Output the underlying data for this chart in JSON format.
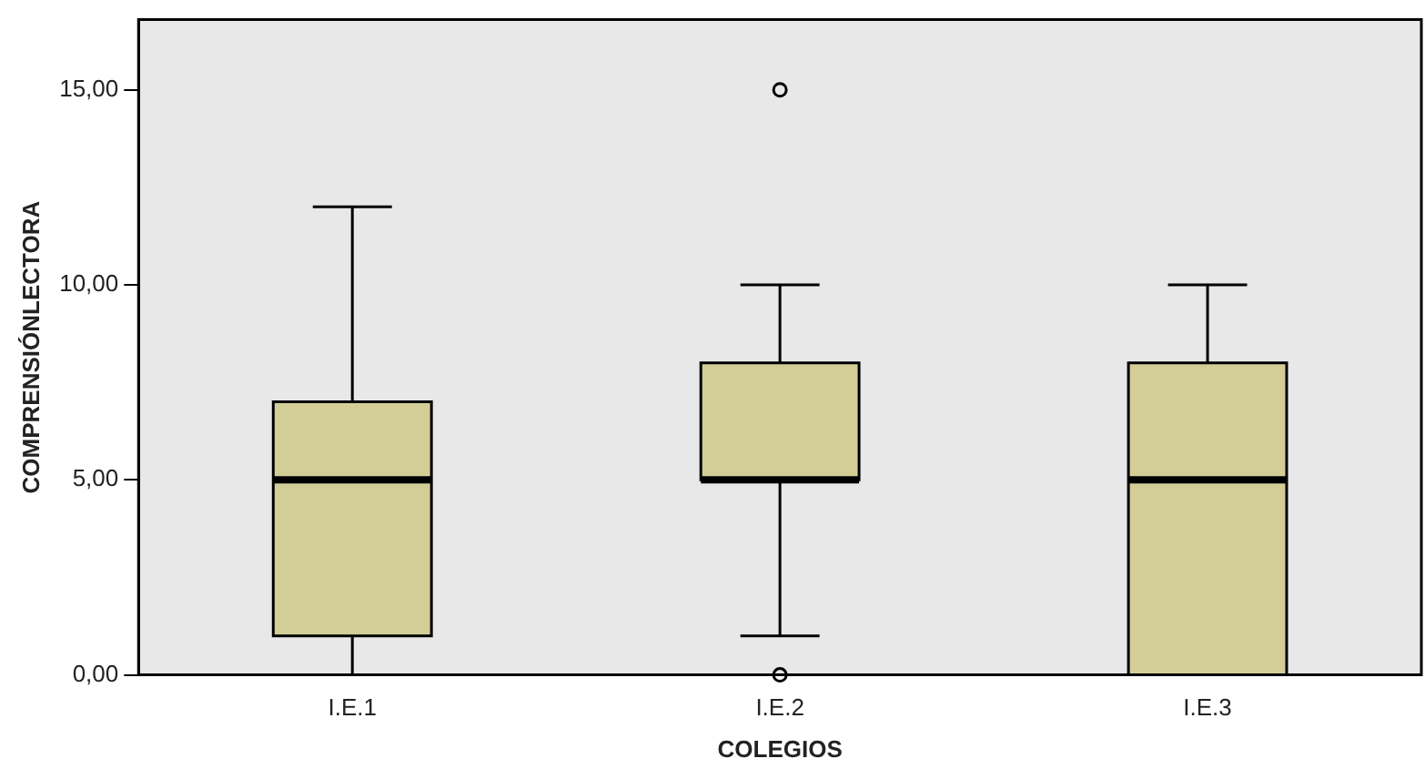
{
  "chart_data": {
    "type": "box",
    "xlabel": "COLEGIOS",
    "ylabel": "COMPRENSIÓNLECTORA",
    "categories": [
      "I.E.1",
      "I.E.2",
      "I.E.3"
    ],
    "color": "#d3ce97",
    "boxes": [
      {
        "low": 0,
        "q1": 1,
        "median": 5,
        "q3": 7,
        "high": 12
      },
      {
        "low": 1,
        "q1": 5,
        "median": 5,
        "q3": 8,
        "high": 10,
        "outliers": [
          15,
          0
        ]
      },
      {
        "low": 0,
        "q1": 0,
        "median": 5,
        "q3": 8,
        "high": 10
      }
    ],
    "ylim": [
      0,
      16.8
    ],
    "yticks": [
      {
        "value": 0,
        "label": "0,00"
      },
      {
        "value": 5,
        "label": "5,00"
      },
      {
        "value": 10,
        "label": "10,00"
      },
      {
        "value": 15,
        "label": "15,00"
      }
    ],
    "grid": false,
    "legend": false
  }
}
